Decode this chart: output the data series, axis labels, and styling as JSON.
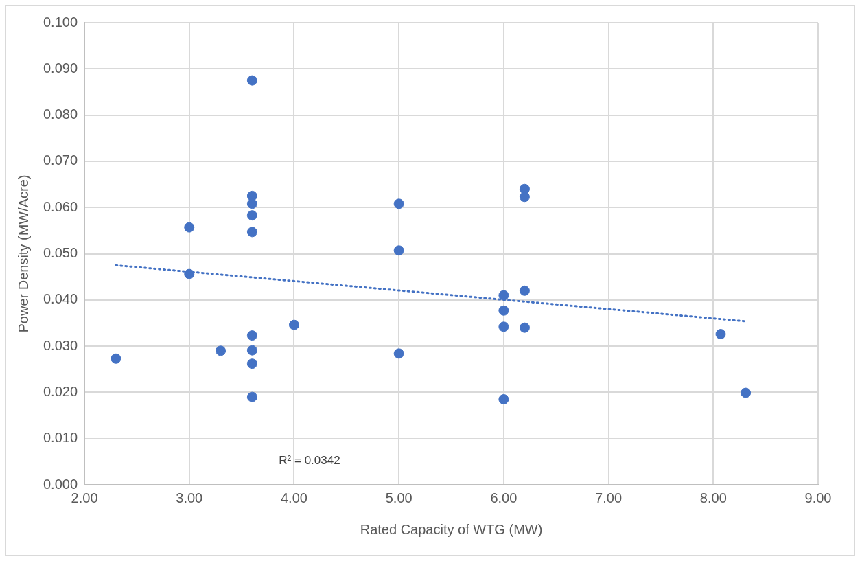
{
  "chart_data": {
    "type": "scatter",
    "xlabel": "Rated Capacity of WTG (MW)",
    "ylabel": "Power Density (MW/Acre)",
    "series": [
      {
        "type": "scatter",
        "color": "#4472c4",
        "marker": "circle",
        "x": [
          2.3,
          3.0,
          3.0,
          3.3,
          3.6,
          3.6,
          3.6,
          3.6,
          3.6,
          3.6,
          3.6,
          3.6,
          3.6,
          4.0,
          5.0,
          5.0,
          5.0,
          6.0,
          6.0,
          6.0,
          6.0,
          6.2,
          6.2,
          6.2,
          6.2,
          8.07,
          8.31
        ],
        "values": [
          0.0273,
          0.0557,
          0.0456,
          0.029,
          0.0875,
          0.0625,
          0.0608,
          0.0583,
          0.0547,
          0.0323,
          0.0291,
          0.0262,
          0.019,
          0.0346,
          0.0608,
          0.0507,
          0.0284,
          0.041,
          0.0377,
          0.0342,
          0.0185,
          0.064,
          0.0623,
          0.042,
          0.034,
          0.0326,
          0.0199
        ]
      },
      {
        "type": "line",
        "color": "#4472c4",
        "line_style": "dotted",
        "marker": "none",
        "x": [
          2.3,
          8.3
        ],
        "values": [
          0.0475,
          0.0354
        ]
      }
    ],
    "xlim": [
      2,
      9
    ],
    "xticks": [
      {
        "value": 2,
        "label": "2.00"
      },
      {
        "value": 3,
        "label": "3.00"
      },
      {
        "value": 4,
        "label": "4.00"
      },
      {
        "value": 5,
        "label": "5.00"
      },
      {
        "value": 6,
        "label": "6.00"
      },
      {
        "value": 7,
        "label": "7.00"
      },
      {
        "value": 8,
        "label": "8.00"
      },
      {
        "value": 9,
        "label": "9.00"
      }
    ],
    "ylim": [
      0,
      0.1
    ],
    "yticks": [
      {
        "value": 0,
        "label": "0.000"
      },
      {
        "value": 0.01,
        "label": "0.010"
      },
      {
        "value": 0.02,
        "label": "0.020"
      },
      {
        "value": 0.03,
        "label": "0.030"
      },
      {
        "value": 0.04,
        "label": "0.040"
      },
      {
        "value": 0.05,
        "label": "0.050"
      },
      {
        "value": 0.06,
        "label": "0.060"
      },
      {
        "value": 0.07,
        "label": "0.070"
      },
      {
        "value": 0.08,
        "label": "0.080"
      },
      {
        "value": 0.09,
        "label": "0.090"
      },
      {
        "value": 0.1,
        "label": "0.100"
      }
    ],
    "grid": true,
    "legend": false,
    "annotations": [
      "R² = 0.0342"
    ]
  }
}
